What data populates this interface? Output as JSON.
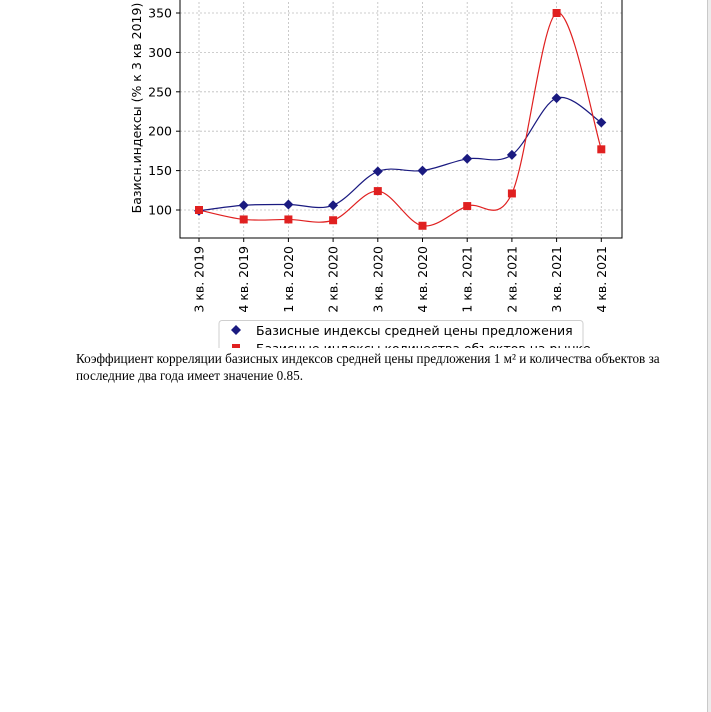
{
  "chart_data": {
    "type": "line",
    "ylabel": "Базисн.индексы (% к 3 кв 2019)",
    "xlabel": "",
    "categories": [
      "3 кв. 2019",
      "4 кв. 2019",
      "1 кв. 2020",
      "2 кв. 2020",
      "3 кв. 2020",
      "4 кв. 2020",
      "1 кв. 2021",
      "2 кв. 2021",
      "3 кв. 2021",
      "4 кв. 2021"
    ],
    "yticks": [
      100,
      150,
      200,
      250,
      300,
      350
    ],
    "ylim": [
      65,
      375
    ],
    "grid": true,
    "legend_position": "bottom",
    "series": [
      {
        "name": "Базисные индексы средней цены предложения",
        "color": "#1a1a80",
        "marker": "diamond",
        "values": [
          99,
          106,
          107,
          106,
          149,
          150,
          165,
          170,
          242,
          211
        ]
      },
      {
        "name": "Базисные индексы количества объектов на рынке",
        "color": "#e02020",
        "marker": "square",
        "values": [
          100,
          88,
          88,
          87,
          124,
          80,
          105,
          121,
          350,
          177
        ]
      }
    ]
  },
  "caption": "Коэффициент корреляции базисных индексов средней цены предложения 1 м² и количества объектов за последние два года имеет значение 0.85."
}
